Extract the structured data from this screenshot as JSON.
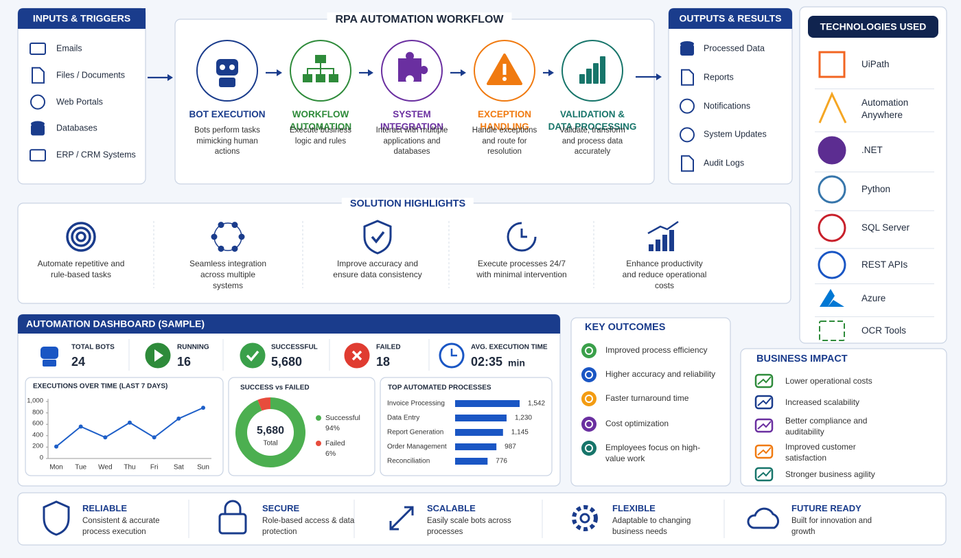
{
  "inputs": {
    "title": "INPUTS & TRIGGERS",
    "items": [
      "Emails",
      "Files / Documents",
      "Web Portals",
      "Databases",
      "ERP / CRM Systems"
    ]
  },
  "workflow": {
    "title": "RPA AUTOMATION WORKFLOW",
    "steps": [
      {
        "title": "BOT EXECUTION",
        "text": "Bots perform tasks mimicking human actions",
        "color": "#1a3c8c"
      },
      {
        "title": "WORKFLOW AUTOMATION",
        "text": "Execute business logic and rules",
        "color": "#2e8b3a"
      },
      {
        "title": "SYSTEM INTEGRATION",
        "text": "Interact with multiple applications and databases",
        "color": "#6a2fa0"
      },
      {
        "title": "EXCEPTION HANDLING",
        "text": "Handle exceptions and route for resolution",
        "color": "#f07a10"
      },
      {
        "title": "VALIDATION & DATA PROCESSING",
        "text": "Validate, transform and process data accurately",
        "color": "#17756a"
      }
    ]
  },
  "outputs": {
    "title": "OUTPUTS & RESULTS",
    "items": [
      "Processed Data",
      "Reports",
      "Notifications",
      "System Updates",
      "Audit Logs"
    ]
  },
  "technologies": {
    "title": "TECHNOLOGIES USED",
    "items": [
      {
        "name": "UiPath",
        "color": "#f26522"
      },
      {
        "name": "Automation Anywhere",
        "color": "#f5a623"
      },
      {
        "name": ".NET",
        "color": "#5c2d91"
      },
      {
        "name": "Python",
        "color": "#3776ab"
      },
      {
        "name": "SQL Server",
        "color": "#c8202b"
      },
      {
        "name": "REST APIs",
        "color": "#1a56c4"
      },
      {
        "name": "Azure",
        "color": "#0078d4"
      },
      {
        "name": "OCR Tools",
        "color": "#2e8b3a"
      }
    ]
  },
  "highlights": {
    "title": "SOLUTION HIGHLIGHTS",
    "items": [
      "Automate repetitive and rule-based tasks",
      "Seamless integration across multiple systems",
      "Improve accuracy and ensure data consistency",
      "Execute processes 24/7 with minimal intervention",
      "Enhance productivity and reduce operational costs"
    ]
  },
  "dashboard": {
    "title": "AUTOMATION DASHBOARD (SAMPLE)",
    "kpis": [
      {
        "label": "TOTAL BOTS",
        "value": "24",
        "color": "#1a56c4"
      },
      {
        "label": "RUNNING",
        "value": "16",
        "color": "#2e8b3a"
      },
      {
        "label": "SUCCESSFUL",
        "value": "5,680",
        "color": "#3aa04a"
      },
      {
        "label": "FAILED",
        "value": "18",
        "color": "#e03c31"
      },
      {
        "label": "AVG. EXECUTION TIME",
        "value": "02:35",
        "unit": "min",
        "color": "#1a56c4"
      }
    ]
  },
  "chart_data": [
    {
      "type": "line",
      "title": "EXECUTIONS OVER TIME (LAST 7 DAYS)",
      "categories": [
        "Mon",
        "Tue",
        "Wed",
        "Thu",
        "Fri",
        "Sat",
        "Sun"
      ],
      "values": [
        210,
        560,
        370,
        630,
        370,
        700,
        890
      ],
      "color": "#1e5fc8",
      "ylim": [
        0,
        1000
      ],
      "yticks": [
        0,
        200,
        400,
        600,
        800,
        {
          "value": 1000,
          "label": "1,000"
        }
      ]
    },
    {
      "type": "pie",
      "donut": true,
      "title": "SUCCESS vs FAILED",
      "categories": [
        "Successful",
        "Failed"
      ],
      "values": [
        94,
        6
      ],
      "value_labels": [
        "94%",
        "6%"
      ],
      "colors": [
        "#4caf50",
        "#e74c3c"
      ],
      "center_label": "5,680",
      "center_caption": "Total"
    },
    {
      "type": "bar",
      "orientation": "horizontal",
      "title": "TOP AUTOMATED PROCESSES",
      "categories": [
        "Invoice Processing",
        "Data Entry",
        "Report Generation",
        "Order Management",
        "Reconciliation"
      ],
      "values": [
        1542,
        1230,
        1145,
        987,
        776
      ],
      "value_labels": [
        "1,542",
        "1,230",
        "1,145",
        "987",
        "776"
      ],
      "color": "#1a56c4"
    }
  ],
  "outcomes": {
    "title": "KEY OUTCOMES",
    "items": [
      {
        "text": "Improved process efficiency",
        "color": "#3aa04a"
      },
      {
        "text": "Higher accuracy and reliability",
        "color": "#1a56c4"
      },
      {
        "text": "Faster turnaround time",
        "color": "#f39c12"
      },
      {
        "text": "Cost optimization",
        "color": "#6a2fa0"
      },
      {
        "text": "Employees focus on high-value work",
        "color": "#17756a"
      }
    ]
  },
  "impact": {
    "title": "BUSINESS IMPACT",
    "items": [
      {
        "text": "Lower operational costs",
        "color": "#2e8b3a"
      },
      {
        "text": "Increased scalability",
        "color": "#1a3c8c"
      },
      {
        "text": "Better compliance and auditability",
        "color": "#6a2fa0"
      },
      {
        "text": "Improved customer satisfaction",
        "color": "#f07a10"
      },
      {
        "text": "Stronger business agility",
        "color": "#17756a"
      }
    ]
  },
  "footer": [
    {
      "title": "RELIABLE",
      "text": "Consistent & accurate process execution"
    },
    {
      "title": "SECURE",
      "text": "Role-based access & data protection"
    },
    {
      "title": "SCALABLE",
      "text": "Easily scale bots across processes"
    },
    {
      "title": "FLEXIBLE",
      "text": "Adaptable to changing business needs"
    },
    {
      "title": "FUTURE READY",
      "text": "Built for innovation and growth"
    }
  ]
}
